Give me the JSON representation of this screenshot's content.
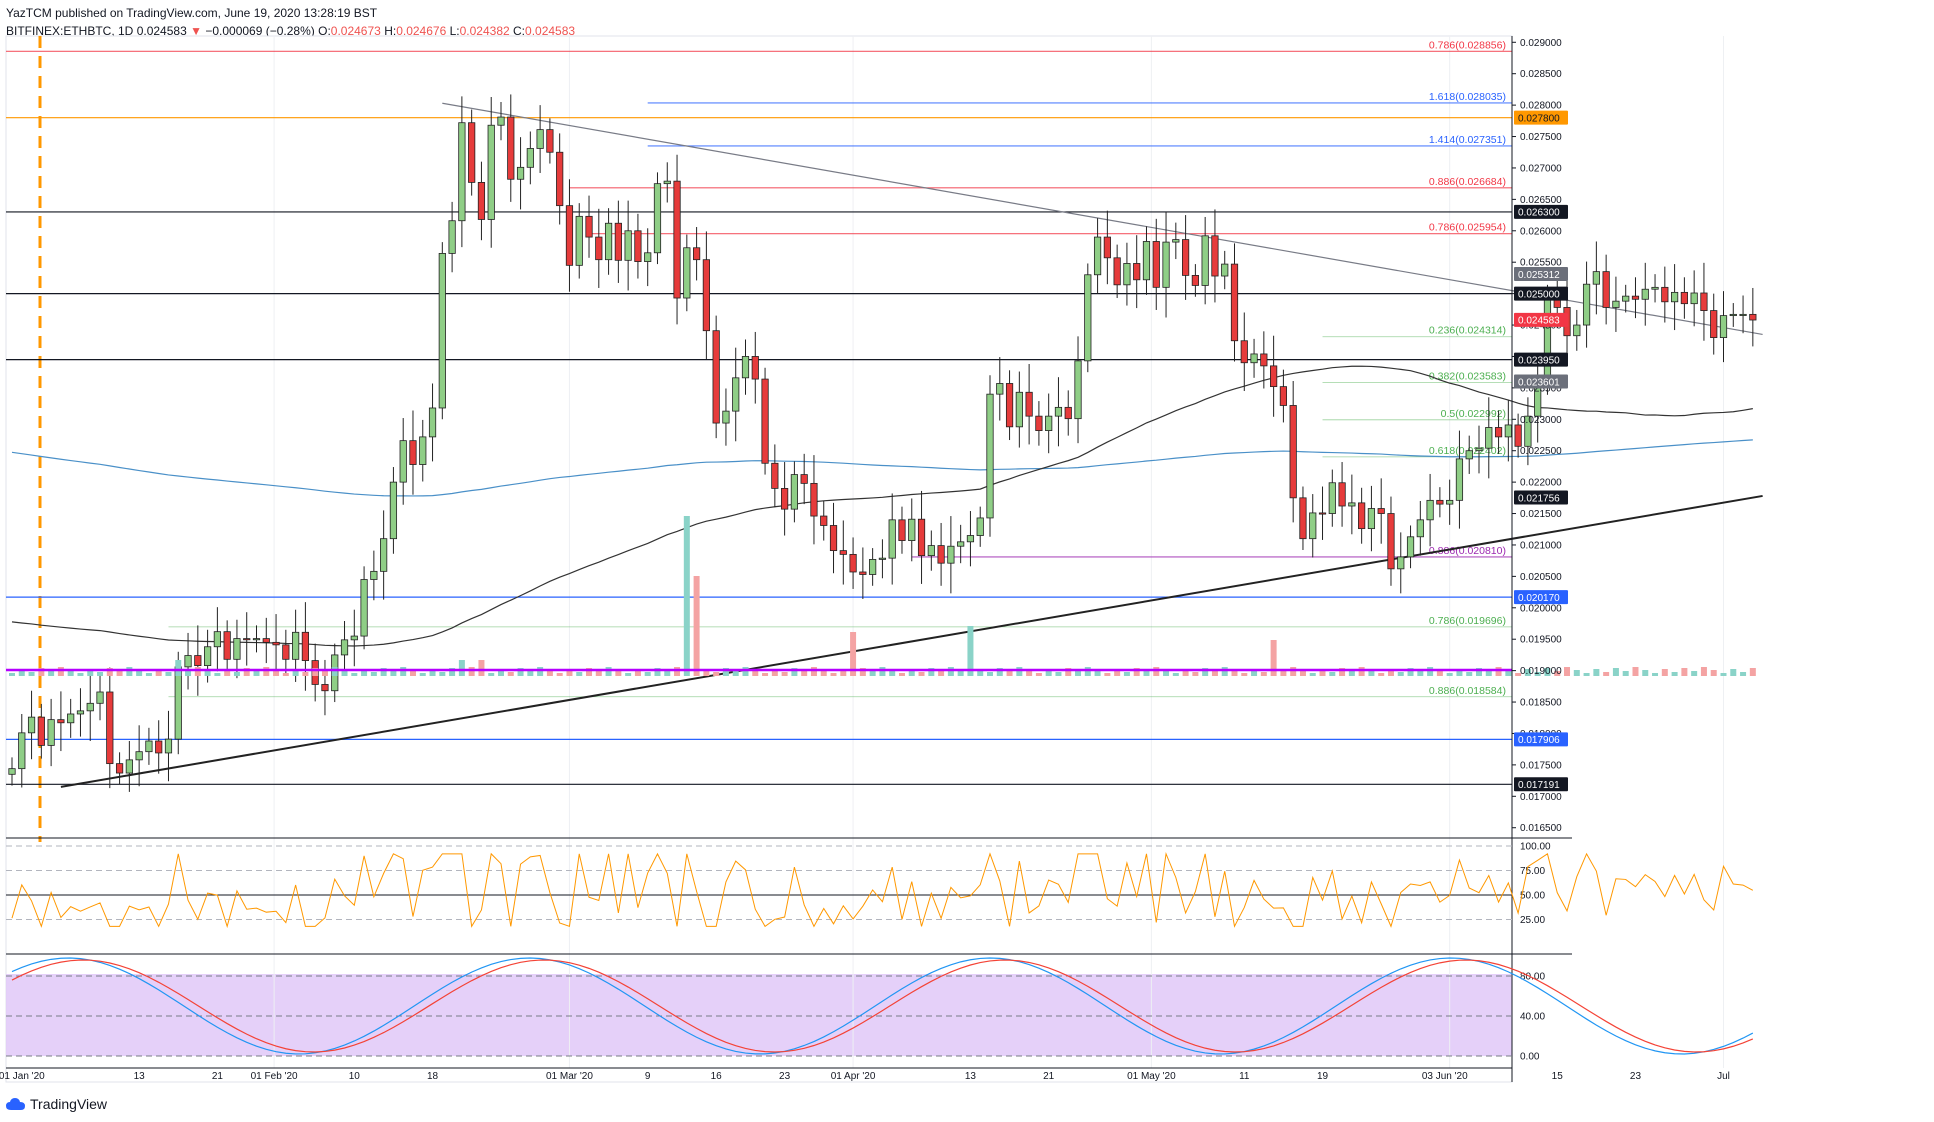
{
  "header": {
    "publisher_line": "YazTCM published on TradingView.com, June 19, 2020 13:28:19 BST",
    "symbol": "BITFINEX:ETHBTC, 1D",
    "price": "0.024583",
    "change": "−0.000069 (−0.28%)",
    "open_label": "O:",
    "open": "0.024673",
    "high_label": "H:",
    "high": "0.024676",
    "low_label": "L:",
    "low": "0.024382",
    "close_label": "C:",
    "close": "0.024583"
  },
  "branding": {
    "name": "TradingView",
    "icon": "tradingview-cloud-icon"
  },
  "colors": {
    "up": "#26a69a",
    "down": "#ef5350",
    "upBody": "#8fce86",
    "downBody": "#e63b3b",
    "fibRed": "#f23645",
    "fibGreen": "#4caf50",
    "fibBlue": "#2962ff",
    "fibPurple": "#9c27b0",
    "orange": "#ff9800",
    "rsi": "#ff9800",
    "stochK": "#2196f3",
    "stochD": "#f44336"
  },
  "chart_data": {
    "type": "candlestick",
    "title": "BITFINEX:ETHBTC, 1D",
    "y_range": [
      0.0164,
      0.0291
    ],
    "y_ticks": [
      "0.029000",
      "0.028500",
      "0.028000",
      "0.027500",
      "0.027000",
      "0.026500",
      "0.026000",
      "0.025500",
      "0.025000",
      "0.024500",
      "0.024000",
      "0.023500",
      "0.023000",
      "0.022500",
      "0.022000",
      "0.021500",
      "0.021000",
      "0.020500",
      "0.020000",
      "0.019500",
      "0.019000",
      "0.018500",
      "0.018000",
      "0.017500",
      "0.017000",
      "0.016500"
    ],
    "x_ticks": [
      "01 Jan '20",
      "13",
      "21",
      "01 Feb '20",
      "10",
      "18",
      "01 Mar '20",
      "9",
      "16",
      "23",
      "01 Apr '20",
      "13",
      "21",
      "01 May '20",
      "11",
      "19",
      "03 Jun '20",
      "15",
      "23",
      "Jul"
    ],
    "price_tags": [
      {
        "value": 0.025312,
        "label": "0.025312",
        "style": "gray"
      },
      {
        "value": 0.025,
        "label": "0.025000",
        "style": "black"
      },
      {
        "value": 0.024583,
        "label": "0.024583",
        "style": "last"
      },
      {
        "value": 0.02395,
        "label": "0.023950",
        "style": "black"
      },
      {
        "value": 0.023601,
        "label": "0.023601",
        "style": "gray"
      },
      {
        "value": 0.021756,
        "label": "0.021756",
        "style": "black"
      },
      {
        "value": 0.02017,
        "label": "0.020170",
        "style": "blue"
      },
      {
        "value": 0.017906,
        "label": "0.017906",
        "style": "blue"
      },
      {
        "value": 0.017191,
        "label": "0.017191",
        "style": "black"
      },
      {
        "value": 0.0278,
        "label": "0.027800",
        "style": "orange"
      },
      {
        "value": 0.0263,
        "label": "0.026300",
        "style": "black"
      }
    ],
    "fib_levels": [
      {
        "value": 0.028856,
        "label": "0.786(0.028856)",
        "color": "red",
        "x_from_day": 0
      },
      {
        "value": 0.028035,
        "label": "1.618(0.028035)",
        "color": "blue",
        "x_from_day": 65
      },
      {
        "value": 0.027351,
        "label": "1.414(0.027351)",
        "color": "blue",
        "x_from_day": 65
      },
      {
        "value": 0.026684,
        "label": "0.886(0.026684)",
        "color": "red",
        "x_from_day": 57
      },
      {
        "value": 0.025954,
        "label": "0.786(0.025954)",
        "color": "red",
        "x_from_day": 59
      },
      {
        "value": 0.024314,
        "label": "0.236(0.024314)",
        "color": "green",
        "x_from_day": 134
      },
      {
        "value": 0.023583,
        "label": "0.382(0.023583)",
        "color": "green",
        "x_from_day": 134
      },
      {
        "value": 0.022992,
        "label": "0.5(0.022992)",
        "color": "green",
        "x_from_day": 134
      },
      {
        "value": 0.022402,
        "label": "0.618(0.022402)",
        "color": "green",
        "x_from_day": 134
      },
      {
        "value": 0.02081,
        "label": "0.886(0.020810)",
        "color": "purple",
        "x_from_day": 92
      },
      {
        "value": 0.019696,
        "label": "0.786(0.019696)",
        "color": "green",
        "x_from_day": 16
      },
      {
        "value": 0.018584,
        "label": "0.886(0.018584)",
        "color": "green",
        "x_from_day": 16
      }
    ],
    "horizontal_lines": [
      {
        "value": 0.0278,
        "color": "orange"
      },
      {
        "value": 0.0263,
        "color": "black"
      },
      {
        "value": 0.025,
        "color": "black"
      },
      {
        "value": 0.02395,
        "color": "black"
      },
      {
        "value": 0.02017,
        "color": "blue"
      },
      {
        "value": 0.017906,
        "color": "blue"
      },
      {
        "value": 0.017191,
        "color": "black"
      }
    ],
    "trendlines": [
      {
        "from": [
          44,
          0.02803
        ],
        "to": [
          179,
          0.02435
        ],
        "color": "gray"
      },
      {
        "from": [
          5,
          0.01715
        ],
        "to": [
          179,
          0.02178
        ],
        "color": "black"
      }
    ],
    "candles": [
      [
        0.01735,
        0.01744
      ],
      [
        0.01744,
        0.01801
      ],
      [
        0.01801,
        0.01826
      ],
      [
        0.01826,
        0.01781
      ],
      [
        0.01781,
        0.01822
      ],
      [
        0.01822,
        0.01817
      ],
      [
        0.01817,
        0.01831
      ],
      [
        0.01831,
        0.01836
      ],
      [
        0.01836,
        0.01848
      ],
      [
        0.01848,
        0.01866
      ],
      [
        0.01866,
        0.01752
      ],
      [
        0.01752,
        0.01737
      ],
      [
        0.01737,
        0.01758
      ],
      [
        0.01758,
        0.01771
      ],
      [
        0.01771,
        0.01788
      ],
      [
        0.01788,
        0.01769
      ],
      [
        0.01769,
        0.01791
      ],
      [
        0.01791,
        0.01906
      ],
      [
        0.01906,
        0.01924
      ],
      [
        0.01924,
        0.01908
      ],
      [
        0.01908,
        0.01938
      ],
      [
        0.01938,
        0.01962
      ],
      [
        0.01962,
        0.01918
      ],
      [
        0.01918,
        0.01951
      ],
      [
        0.01951,
        0.0195
      ],
      [
        0.0195,
        0.01951
      ],
      [
        0.01951,
        0.01945
      ],
      [
        0.01945,
        0.01941
      ],
      [
        0.01941,
        0.01918
      ],
      [
        0.01918,
        0.01961
      ],
      [
        0.01961,
        0.01916
      ],
      [
        0.01916,
        0.01878
      ],
      [
        0.01878,
        0.01868
      ],
      [
        0.01868,
        0.01925
      ],
      [
        0.01925,
        0.01949
      ],
      [
        0.01949,
        0.01955
      ],
      [
        0.01955,
        0.02045
      ],
      [
        0.02045,
        0.02058
      ],
      [
        0.02058,
        0.0211
      ],
      [
        0.0211,
        0.022
      ],
      [
        0.022,
        0.02266
      ],
      [
        0.02266,
        0.02228
      ],
      [
        0.02228,
        0.02272
      ],
      [
        0.02272,
        0.02318
      ],
      [
        0.02318,
        0.02564
      ],
      [
        0.02564,
        0.02616
      ],
      [
        0.02616,
        0.02772
      ],
      [
        0.02772,
        0.02677
      ],
      [
        0.02677,
        0.02618
      ],
      [
        0.02618,
        0.02768
      ],
      [
        0.02768,
        0.02781
      ],
      [
        0.02781,
        0.02682
      ],
      [
        0.02682,
        0.02701
      ],
      [
        0.02701,
        0.02731
      ],
      [
        0.02731,
        0.02761
      ],
      [
        0.02761,
        0.02725
      ],
      [
        0.02725,
        0.0264
      ],
      [
        0.0264,
        0.02545
      ],
      [
        0.02545,
        0.02623
      ],
      [
        0.02623,
        0.0259
      ],
      [
        0.0259,
        0.02554
      ],
      [
        0.02554,
        0.02612
      ],
      [
        0.02612,
        0.02553
      ],
      [
        0.02553,
        0.026
      ],
      [
        0.026,
        0.02551
      ],
      [
        0.02551,
        0.02565
      ],
      [
        0.02565,
        0.02675
      ],
      [
        0.02675,
        0.02679
      ],
      [
        0.02679,
        0.02493
      ],
      [
        0.02493,
        0.02573
      ],
      [
        0.02573,
        0.02554
      ],
      [
        0.02554,
        0.02441
      ],
      [
        0.02441,
        0.02294
      ],
      [
        0.02294,
        0.02313
      ],
      [
        0.02313,
        0.02366
      ],
      [
        0.02366,
        0.024
      ],
      [
        0.024,
        0.02364
      ],
      [
        0.02364,
        0.0223
      ],
      [
        0.0223,
        0.0219
      ],
      [
        0.0219,
        0.02157
      ],
      [
        0.02157,
        0.02212
      ],
      [
        0.02212,
        0.02198
      ],
      [
        0.02198,
        0.02146
      ],
      [
        0.02146,
        0.02131
      ],
      [
        0.02131,
        0.02091
      ],
      [
        0.02091,
        0.02085
      ],
      [
        0.02085,
        0.02057
      ],
      [
        0.02057,
        0.02053
      ],
      [
        0.02053,
        0.02077
      ],
      [
        0.02077,
        0.02079
      ],
      [
        0.02079,
        0.0214
      ],
      [
        0.0214,
        0.02107
      ],
      [
        0.02107,
        0.02141
      ],
      [
        0.02141,
        0.02083
      ],
      [
        0.02083,
        0.02099
      ],
      [
        0.02099,
        0.02071
      ],
      [
        0.02071,
        0.02098
      ],
      [
        0.02098,
        0.02105
      ],
      [
        0.02105,
        0.02115
      ],
      [
        0.02115,
        0.02143
      ],
      [
        0.02143,
        0.0234
      ],
      [
        0.0234,
        0.02357
      ],
      [
        0.02357,
        0.02288
      ],
      [
        0.02288,
        0.02343
      ],
      [
        0.02343,
        0.02305
      ],
      [
        0.02305,
        0.02282
      ],
      [
        0.02282,
        0.02305
      ],
      [
        0.02305,
        0.02319
      ],
      [
        0.02319,
        0.02301
      ],
      [
        0.02301,
        0.02393
      ],
      [
        0.02393,
        0.0253
      ],
      [
        0.0253,
        0.0259
      ],
      [
        0.0259,
        0.02557
      ],
      [
        0.02557,
        0.02514
      ],
      [
        0.02514,
        0.02548
      ],
      [
        0.02548,
        0.02522
      ],
      [
        0.02522,
        0.02583
      ],
      [
        0.02583,
        0.0251
      ],
      [
        0.0251,
        0.02582
      ],
      [
        0.02582,
        0.02586
      ],
      [
        0.02586,
        0.02529
      ],
      [
        0.02529,
        0.02513
      ],
      [
        0.02513,
        0.02592
      ],
      [
        0.02592,
        0.02528
      ],
      [
        0.02528,
        0.02547
      ],
      [
        0.02547,
        0.02425
      ],
      [
        0.02425,
        0.0239
      ],
      [
        0.0239,
        0.02404
      ],
      [
        0.02404,
        0.02385
      ],
      [
        0.02385,
        0.02352
      ],
      [
        0.02352,
        0.02322
      ],
      [
        0.02322,
        0.02175
      ],
      [
        0.02175,
        0.0211
      ],
      [
        0.0211,
        0.02151
      ],
      [
        0.02151,
        0.0215
      ],
      [
        0.0215,
        0.02199
      ],
      [
        0.02199,
        0.02162
      ],
      [
        0.02162,
        0.02167
      ],
      [
        0.02167,
        0.02126
      ],
      [
        0.02126,
        0.02158
      ],
      [
        0.02158,
        0.0215
      ],
      [
        0.0215,
        0.02062
      ],
      [
        0.02062,
        0.02081
      ],
      [
        0.02081,
        0.02113
      ],
      [
        0.02113,
        0.0214
      ],
      [
        0.0214,
        0.02171
      ],
      [
        0.02171,
        0.02165
      ],
      [
        0.02165,
        0.02171
      ],
      [
        0.02171,
        0.02237
      ],
      [
        0.02237,
        0.0225
      ],
      [
        0.0225,
        0.02254
      ],
      [
        0.02254,
        0.02287
      ],
      [
        0.02287,
        0.02272
      ],
      [
        0.02272,
        0.02291
      ],
      [
        0.02291,
        0.02257
      ],
      [
        0.02257,
        0.02305
      ],
      [
        0.02305,
        0.0236
      ],
      [
        0.0236,
        0.02493
      ],
      [
        0.02493,
        0.02478
      ],
      [
        0.02478,
        0.02433
      ],
      [
        0.02433,
        0.0245
      ],
      [
        0.0245,
        0.02515
      ],
      [
        0.02515,
        0.02535
      ],
      [
        0.02535,
        0.02478
      ],
      [
        0.02478,
        0.02488
      ],
      [
        0.02488,
        0.02496
      ],
      [
        0.02496,
        0.02491
      ],
      [
        0.02491,
        0.02507
      ],
      [
        0.02507,
        0.0251
      ],
      [
        0.0251,
        0.02487
      ],
      [
        0.02487,
        0.02502
      ],
      [
        0.02502,
        0.02484
      ],
      [
        0.02484,
        0.02501
      ],
      [
        0.02501,
        0.02473
      ],
      [
        0.02473,
        0.0243
      ],
      [
        0.0243,
        0.02465
      ],
      [
        0.02465,
        0.02467
      ],
      [
        0.02467,
        0.02467
      ],
      [
        0.02467,
        0.02458
      ]
    ],
    "volume_peak_days": [
      69,
      70,
      86,
      98,
      129,
      17,
      46,
      48
    ],
    "rsi": {
      "levels": [
        100,
        75,
        50,
        25
      ],
      "tick_labels": [
        "100.00",
        "75.00",
        "50.00",
        "25.00"
      ],
      "last": 50.0
    },
    "stoch_rsi": {
      "levels": [
        80,
        40,
        0
      ],
      "tick_labels": [
        "80.00",
        "40.00",
        "0.00"
      ]
    }
  }
}
